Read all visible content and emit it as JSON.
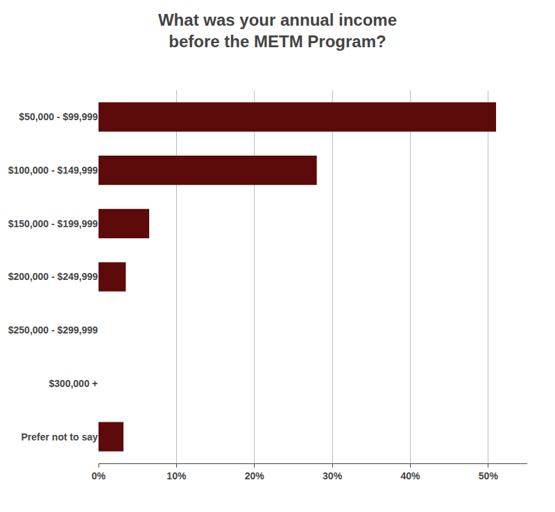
{
  "chart_data": {
    "type": "bar",
    "orientation": "horizontal",
    "title": "What was your annual income\nbefore the METM Program?",
    "categories": [
      "$50,000 - $99,999",
      "$100,000 - $149,999",
      "$150,000 - $199,999",
      "$200,000 - $249,999",
      "$250,000 - $299,999",
      "$300,000 +",
      "Prefer not to say"
    ],
    "values": [
      51,
      28,
      6.5,
      3.5,
      0,
      0,
      3.2
    ],
    "color": "#5C0A0A",
    "xlim": [
      0,
      55
    ],
    "xticks": [
      {
        "value": 0,
        "label": "0%"
      },
      {
        "value": 10,
        "label": "10%"
      },
      {
        "value": 20,
        "label": "20%"
      },
      {
        "value": 30,
        "label": "30%"
      },
      {
        "value": 40,
        "label": "40%"
      },
      {
        "value": 50,
        "label": "50%"
      }
    ],
    "grid": true
  }
}
